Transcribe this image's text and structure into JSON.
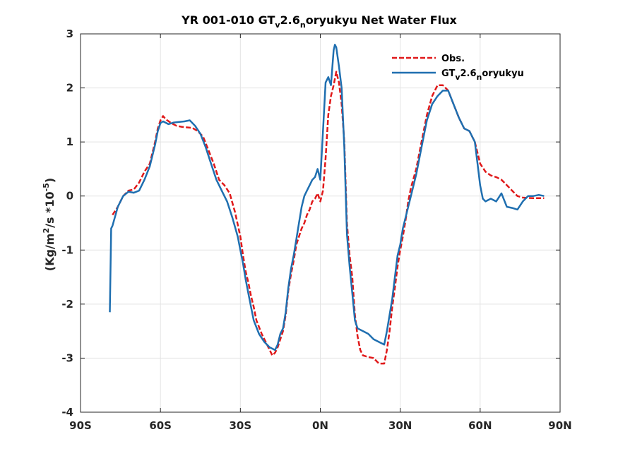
{
  "chart_data": {
    "type": "line",
    "title": {
      "prefix": "YR 001-010 GT",
      "sub1": "v",
      "mid": "2.6",
      "sub2": "n",
      "suffix": "oryukyu  Net Water Flux"
    },
    "ylabel": {
      "prefix": "(Kg/m",
      "sup1": "2",
      "mid": "/s *10",
      "sup2": "-5",
      "suffix": ")"
    },
    "xlim": [
      -90,
      90
    ],
    "ylim": [
      -4,
      3
    ],
    "x_ticks": [
      -90,
      -60,
      -30,
      0,
      30,
      60,
      90
    ],
    "x_tick_labels": [
      "90S",
      "60S",
      "30S",
      "0N",
      "30N",
      "60N",
      "90N"
    ],
    "y_ticks": [
      -4,
      -3,
      -2,
      -1,
      0,
      1,
      2,
      3
    ],
    "y_tick_labels": [
      "-4",
      "-3",
      "-2",
      "-1",
      "0",
      "1",
      "2",
      "3"
    ],
    "grid": true,
    "legend_position": "top-right",
    "colors": {
      "obs": "#e0191a",
      "model": "#1f6fb0",
      "grid": "#e3e3e3",
      "axis": "#262626"
    },
    "series": [
      {
        "name": "Obs.",
        "style": "dashed",
        "points": [
          [
            -78,
            -0.35
          ],
          [
            -76,
            -0.2
          ],
          [
            -74,
            0.0
          ],
          [
            -72,
            0.1
          ],
          [
            -70,
            0.12
          ],
          [
            -68,
            0.25
          ],
          [
            -66,
            0.45
          ],
          [
            -64,
            0.6
          ],
          [
            -62,
            1.0
          ],
          [
            -61,
            1.25
          ],
          [
            -60,
            1.4
          ],
          [
            -59,
            1.48
          ],
          [
            -58,
            1.42
          ],
          [
            -56,
            1.35
          ],
          [
            -54,
            1.3
          ],
          [
            -52,
            1.28
          ],
          [
            -50,
            1.27
          ],
          [
            -48,
            1.26
          ],
          [
            -46,
            1.2
          ],
          [
            -44,
            1.1
          ],
          [
            -42,
            0.85
          ],
          [
            -40,
            0.6
          ],
          [
            -38,
            0.3
          ],
          [
            -36,
            0.2
          ],
          [
            -34,
            0.05
          ],
          [
            -32,
            -0.3
          ],
          [
            -30,
            -0.75
          ],
          [
            -29,
            -1.1
          ],
          [
            -28,
            -1.4
          ],
          [
            -27,
            -1.6
          ],
          [
            -26,
            -1.85
          ],
          [
            -25,
            -2.05
          ],
          [
            -24,
            -2.3
          ],
          [
            -22,
            -2.55
          ],
          [
            -20,
            -2.75
          ],
          [
            -19,
            -2.85
          ],
          [
            -18,
            -2.95
          ],
          [
            -17,
            -2.9
          ],
          [
            -16,
            -2.8
          ],
          [
            -15,
            -2.65
          ],
          [
            -14,
            -2.5
          ],
          [
            -13,
            -2.2
          ],
          [
            -12,
            -1.75
          ],
          [
            -11,
            -1.45
          ],
          [
            -10,
            -1.2
          ],
          [
            -9,
            -0.9
          ],
          [
            -8,
            -0.75
          ],
          [
            -7,
            -0.6
          ],
          [
            -6,
            -0.5
          ],
          [
            -5,
            -0.35
          ],
          [
            -4,
            -0.25
          ],
          [
            -3,
            -0.1
          ],
          [
            -2,
            -0.05
          ],
          [
            -1,
            0.05
          ],
          [
            0,
            -0.1
          ],
          [
            1,
            0.1
          ],
          [
            2,
            0.7
          ],
          [
            3,
            1.5
          ],
          [
            4,
            1.85
          ],
          [
            5,
            2.05
          ],
          [
            6,
            2.3
          ],
          [
            7,
            2.1
          ],
          [
            8,
            1.7
          ],
          [
            9,
            1.0
          ],
          [
            10,
            -0.5
          ],
          [
            11,
            -1.1
          ],
          [
            12,
            -1.5
          ],
          [
            13,
            -2.2
          ],
          [
            14,
            -2.6
          ],
          [
            15,
            -2.85
          ],
          [
            16,
            -2.95
          ],
          [
            18,
            -2.98
          ],
          [
            20,
            -3.0
          ],
          [
            22,
            -3.1
          ],
          [
            24,
            -3.1
          ],
          [
            25,
            -2.85
          ],
          [
            26,
            -2.5
          ],
          [
            27,
            -2.05
          ],
          [
            28,
            -1.7
          ],
          [
            29,
            -1.3
          ],
          [
            30,
            -1.0
          ],
          [
            31,
            -0.75
          ],
          [
            32,
            -0.45
          ],
          [
            33,
            -0.1
          ],
          [
            34,
            0.15
          ],
          [
            36,
            0.5
          ],
          [
            38,
            1.0
          ],
          [
            40,
            1.5
          ],
          [
            42,
            1.85
          ],
          [
            44,
            2.05
          ],
          [
            46,
            2.05
          ],
          [
            48,
            1.95
          ],
          [
            50,
            1.7
          ],
          [
            52,
            1.45
          ],
          [
            54,
            1.25
          ],
          [
            56,
            1.2
          ],
          [
            58,
            1.0
          ],
          [
            59,
            0.8
          ],
          [
            60,
            0.6
          ],
          [
            62,
            0.45
          ],
          [
            64,
            0.38
          ],
          [
            66,
            0.35
          ],
          [
            68,
            0.3
          ],
          [
            70,
            0.2
          ],
          [
            72,
            0.1
          ],
          [
            74,
            0.0
          ],
          [
            76,
            -0.03
          ],
          [
            80,
            -0.04
          ],
          [
            84,
            -0.04
          ]
        ]
      },
      {
        "name": {
          "prefix": "GT",
          "sub1": "v",
          "mid": "2.6",
          "sub2": "n",
          "suffix": "oryukyu"
        },
        "style": "solid",
        "points": [
          [
            -79,
            -2.15
          ],
          [
            -78.5,
            -0.6
          ],
          [
            -78,
            -0.55
          ],
          [
            -76,
            -0.2
          ],
          [
            -74,
            0.0
          ],
          [
            -72,
            0.08
          ],
          [
            -70,
            0.06
          ],
          [
            -68,
            0.1
          ],
          [
            -66,
            0.3
          ],
          [
            -64,
            0.55
          ],
          [
            -62,
            0.95
          ],
          [
            -61,
            1.2
          ],
          [
            -60,
            1.35
          ],
          [
            -59,
            1.38
          ],
          [
            -57,
            1.33
          ],
          [
            -55,
            1.36
          ],
          [
            -53,
            1.37
          ],
          [
            -51,
            1.38
          ],
          [
            -49,
            1.4
          ],
          [
            -47,
            1.3
          ],
          [
            -45,
            1.15
          ],
          [
            -43,
            0.9
          ],
          [
            -41,
            0.6
          ],
          [
            -39,
            0.3
          ],
          [
            -37,
            0.1
          ],
          [
            -35,
            -0.1
          ],
          [
            -33,
            -0.4
          ],
          [
            -31,
            -0.75
          ],
          [
            -30,
            -1.0
          ],
          [
            -29,
            -1.25
          ],
          [
            -28,
            -1.55
          ],
          [
            -27,
            -1.8
          ],
          [
            -26,
            -2.05
          ],
          [
            -25,
            -2.3
          ],
          [
            -23,
            -2.55
          ],
          [
            -21,
            -2.7
          ],
          [
            -19,
            -2.8
          ],
          [
            -17,
            -2.85
          ],
          [
            -16,
            -2.75
          ],
          [
            -15,
            -2.55
          ],
          [
            -14,
            -2.45
          ],
          [
            -13,
            -2.15
          ],
          [
            -12,
            -1.7
          ],
          [
            -11,
            -1.35
          ],
          [
            -10,
            -1.1
          ],
          [
            -9,
            -0.8
          ],
          [
            -8,
            -0.5
          ],
          [
            -7,
            -0.2
          ],
          [
            -6,
            0.0
          ],
          [
            -5,
            0.1
          ],
          [
            -4,
            0.2
          ],
          [
            -3,
            0.3
          ],
          [
            -2,
            0.35
          ],
          [
            -1,
            0.5
          ],
          [
            0,
            0.3
          ],
          [
            1,
            1.2
          ],
          [
            2,
            2.1
          ],
          [
            3,
            2.2
          ],
          [
            4,
            2.05
          ],
          [
            5,
            2.7
          ],
          [
            5.5,
            2.8
          ],
          [
            6,
            2.75
          ],
          [
            7,
            2.4
          ],
          [
            8,
            2.0
          ],
          [
            9,
            0.9
          ],
          [
            10,
            -0.7
          ],
          [
            11,
            -1.3
          ],
          [
            12,
            -1.8
          ],
          [
            13,
            -2.3
          ],
          [
            14,
            -2.45
          ],
          [
            16,
            -2.5
          ],
          [
            18,
            -2.55
          ],
          [
            20,
            -2.65
          ],
          [
            22,
            -2.7
          ],
          [
            24,
            -2.75
          ],
          [
            25,
            -2.5
          ],
          [
            26,
            -2.2
          ],
          [
            27,
            -1.9
          ],
          [
            28,
            -1.5
          ],
          [
            29,
            -1.1
          ],
          [
            30,
            -0.9
          ],
          [
            31,
            -0.6
          ],
          [
            32,
            -0.4
          ],
          [
            33,
            -0.2
          ],
          [
            34,
            0.0
          ],
          [
            36,
            0.4
          ],
          [
            38,
            0.9
          ],
          [
            40,
            1.4
          ],
          [
            42,
            1.7
          ],
          [
            44,
            1.85
          ],
          [
            46,
            1.95
          ],
          [
            48,
            1.95
          ],
          [
            50,
            1.7
          ],
          [
            52,
            1.45
          ],
          [
            54,
            1.25
          ],
          [
            56,
            1.2
          ],
          [
            58,
            1.0
          ],
          [
            59,
            0.6
          ],
          [
            60,
            0.2
          ],
          [
            61,
            -0.05
          ],
          [
            62,
            -0.1
          ],
          [
            64,
            -0.05
          ],
          [
            66,
            -0.1
          ],
          [
            68,
            0.05
          ],
          [
            70,
            -0.2
          ],
          [
            72,
            -0.22
          ],
          [
            74,
            -0.25
          ],
          [
            76,
            -0.1
          ],
          [
            78,
            0.0
          ],
          [
            80,
            0.0
          ],
          [
            82,
            0.02
          ],
          [
            84,
            0.0
          ]
        ]
      }
    ]
  }
}
